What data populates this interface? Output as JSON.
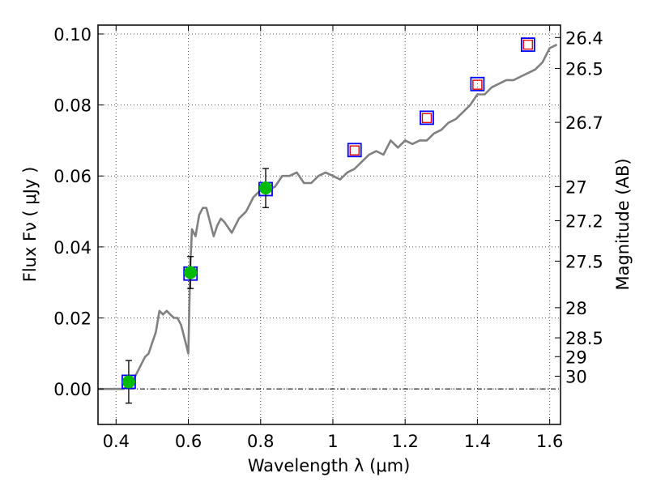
{
  "chart_data": {
    "type": "line",
    "xlabel": "Wavelength  λ (μm)",
    "ylabel": "Flux  Fν  ( μJy )",
    "ylabel_right": "Magnitude (AB)",
    "xlim": [
      0.35,
      1.63
    ],
    "ylim": [
      -0.01,
      0.1025
    ],
    "grid": true,
    "x_ticks": [
      0.4,
      0.6,
      0.8,
      1.0,
      1.2,
      1.4,
      1.6
    ],
    "x_tick_labels": [
      "0.4",
      "0.6",
      "0.8",
      "1",
      "1.2",
      "1.4",
      "1.6"
    ],
    "y_ticks": [
      0.0,
      0.02,
      0.04,
      0.06,
      0.08,
      0.1
    ],
    "y_tick_labels": [
      "0.00",
      "0.02",
      "0.04",
      "0.06",
      "0.08",
      "0.10"
    ],
    "mag_ticks": [
      {
        "label": "26.4",
        "flux": 0.099
      },
      {
        "label": "26.5",
        "flux": 0.0903
      },
      {
        "label": "26.7",
        "flux": 0.0751
      },
      {
        "label": "27",
        "flux": 0.057
      },
      {
        "label": "27.2",
        "flux": 0.0474
      },
      {
        "label": "27.5",
        "flux": 0.036
      },
      {
        "label": "28",
        "flux": 0.0229
      },
      {
        "label": "28.5",
        "flux": 0.0144
      },
      {
        "label": "29",
        "flux": 0.0091
      },
      {
        "label": "30",
        "flux": 0.0036
      }
    ],
    "series": [
      {
        "style": "template-line",
        "color": "#808080",
        "x": [
          0.35,
          0.42,
          0.44,
          0.46,
          0.48,
          0.49,
          0.5,
          0.51,
          0.52,
          0.53,
          0.54,
          0.55,
          0.56,
          0.57,
          0.58,
          0.59,
          0.6,
          0.605,
          0.61,
          0.62,
          0.63,
          0.64,
          0.65,
          0.66,
          0.67,
          0.68,
          0.69,
          0.7,
          0.72,
          0.74,
          0.76,
          0.78,
          0.8,
          0.82,
          0.84,
          0.86,
          0.88,
          0.9,
          0.92,
          0.94,
          0.96,
          0.98,
          1.0,
          1.02,
          1.04,
          1.06,
          1.08,
          1.1,
          1.12,
          1.14,
          1.16,
          1.18,
          1.2,
          1.22,
          1.24,
          1.26,
          1.28,
          1.3,
          1.32,
          1.34,
          1.36,
          1.38,
          1.4,
          1.42,
          1.44,
          1.46,
          1.48,
          1.5,
          1.52,
          1.54,
          1.56,
          1.58,
          1.6,
          1.62
        ],
        "y": [
          0.0,
          0.0,
          0.001,
          0.005,
          0.009,
          0.01,
          0.013,
          0.016,
          0.022,
          0.021,
          0.022,
          0.021,
          0.02,
          0.02,
          0.018,
          0.014,
          0.01,
          0.034,
          0.045,
          0.043,
          0.049,
          0.051,
          0.051,
          0.047,
          0.043,
          0.046,
          0.048,
          0.047,
          0.044,
          0.048,
          0.05,
          0.054,
          0.056,
          0.056,
          0.057,
          0.06,
          0.06,
          0.061,
          0.058,
          0.058,
          0.06,
          0.061,
          0.06,
          0.059,
          0.061,
          0.062,
          0.064,
          0.066,
          0.067,
          0.066,
          0.07,
          0.068,
          0.07,
          0.069,
          0.07,
          0.07,
          0.072,
          0.073,
          0.075,
          0.076,
          0.078,
          0.08,
          0.083,
          0.083,
          0.085,
          0.086,
          0.087,
          0.087,
          0.088,
          0.089,
          0.09,
          0.092,
          0.096,
          0.097
        ]
      },
      {
        "style": "observed-photometry",
        "color": "#00bb00",
        "x": [
          0.435,
          0.606,
          0.814
        ],
        "y": [
          0.002,
          0.0328,
          0.0566
        ],
        "yerr": [
          0.006,
          0.0045,
          0.0055
        ]
      },
      {
        "style": "model-photometry-square",
        "color": "#0000ff",
        "x": [
          0.435,
          0.606,
          0.814,
          1.06,
          1.26,
          1.4,
          1.54
        ],
        "y": [
          0.002,
          0.0325,
          0.0563,
          0.0673,
          0.0764,
          0.0859,
          0.097
        ]
      },
      {
        "style": "upper-limit-square",
        "color": "#dd0000",
        "x": [
          1.06,
          1.26,
          1.4,
          1.54
        ],
        "y": [
          0.0672,
          0.0763,
          0.0857,
          0.097
        ]
      }
    ]
  }
}
